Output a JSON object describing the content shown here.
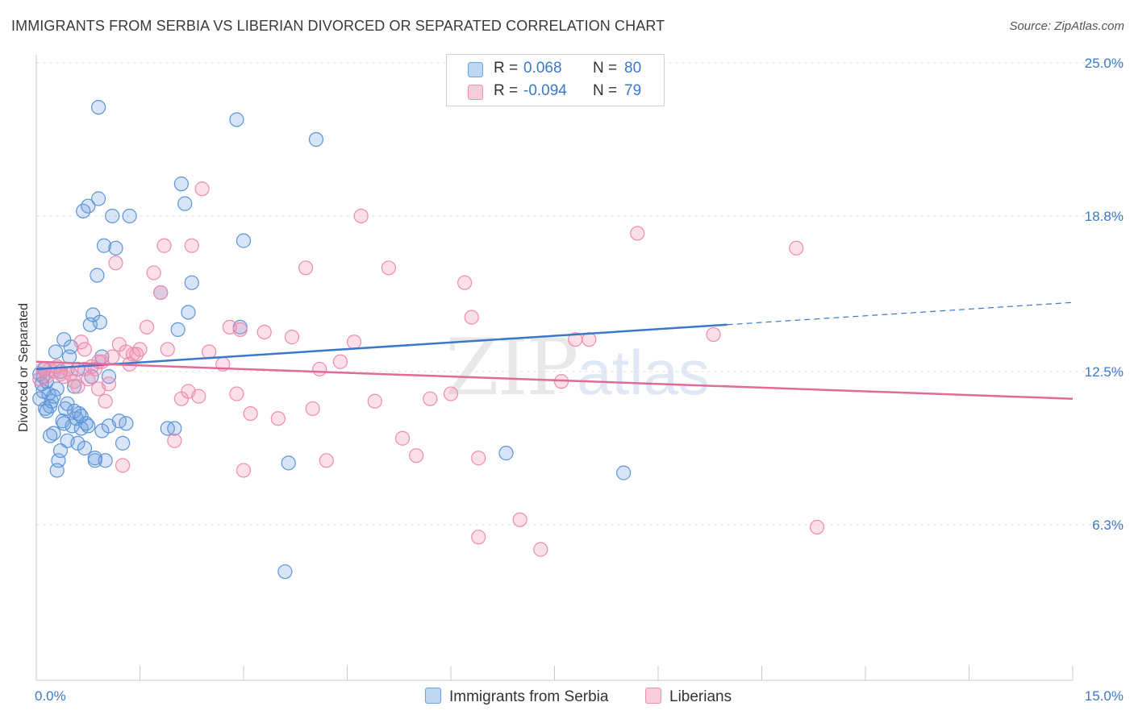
{
  "title": "IMMIGRANTS FROM SERBIA VS LIBERIAN DIVORCED OR SEPARATED CORRELATION CHART",
  "source": "Source: ZipAtlas.com",
  "watermark": {
    "zip": "ZIP",
    "atlas": "atlas"
  },
  "legend": {
    "rows": [
      {
        "r_label": "R =",
        "r_value": "0.068",
        "n_label": "N =",
        "n_value": "80",
        "color": "#6fa3e0"
      },
      {
        "r_label": "R =",
        "r_value": "-0.094",
        "n_label": "N =",
        "n_value": "79",
        "color": "#f090b0"
      }
    ]
  },
  "bottom_legend": [
    {
      "label": "Immigrants from Serbia",
      "color": "#6fa3e0"
    },
    {
      "label": "Liberians",
      "color": "#f090b0"
    }
  ],
  "chart_data": {
    "type": "scatter",
    "title": "IMMIGRANTS FROM SERBIA VS LIBERIAN DIVORCED OR SEPARATED CORRELATION CHART",
    "xlabel": "",
    "ylabel": "Divorced or Separated",
    "xlim": [
      0,
      15
    ],
    "ylim": [
      0,
      25
    ],
    "x_tick_labels": [
      "0.0%",
      "15.0%"
    ],
    "y_ticks": [
      6.3,
      12.5,
      18.8,
      25.0
    ],
    "y_tick_labels": [
      "6.3%",
      "12.5%",
      "18.8%",
      "25.0%"
    ],
    "grid": "horizontal dashed",
    "legend_position": "top-center",
    "series": [
      {
        "name": "Immigrants from Serbia",
        "color": "#6fa3e0",
        "trend": {
          "x0": 0.0,
          "y0": 12.6,
          "x1": 10.0,
          "y1": 14.4,
          "dash_to_x": 15.0,
          "dash_to_y": 15.3
        },
        "points": [
          [
            0.05,
            12.4
          ],
          [
            0.08,
            12.0
          ],
          [
            0.1,
            11.7
          ],
          [
            0.12,
            12.6
          ],
          [
            0.13,
            11.0
          ],
          [
            0.15,
            12.1
          ],
          [
            0.18,
            11.6
          ],
          [
            0.2,
            11.1
          ],
          [
            0.22,
            11.3
          ],
          [
            0.25,
            10.0
          ],
          [
            0.28,
            13.3
          ],
          [
            0.3,
            11.8
          ],
          [
            0.32,
            8.9
          ],
          [
            0.35,
            9.3
          ],
          [
            0.38,
            10.5
          ],
          [
            0.4,
            13.8
          ],
          [
            0.42,
            11.0
          ],
          [
            0.45,
            9.7
          ],
          [
            0.48,
            13.1
          ],
          [
            0.5,
            13.5
          ],
          [
            0.52,
            10.3
          ],
          [
            0.55,
            11.9
          ],
          [
            0.58,
            10.6
          ],
          [
            0.6,
            9.6
          ],
          [
            0.62,
            10.8
          ],
          [
            0.65,
            10.2
          ],
          [
            0.68,
            19.0
          ],
          [
            0.7,
            9.4
          ],
          [
            0.72,
            10.4
          ],
          [
            0.75,
            19.2
          ],
          [
            0.78,
            14.4
          ],
          [
            0.8,
            12.3
          ],
          [
            0.82,
            14.8
          ],
          [
            0.85,
            8.9
          ],
          [
            0.88,
            16.4
          ],
          [
            0.9,
            19.5
          ],
          [
            0.92,
            14.5
          ],
          [
            0.95,
            13.1
          ],
          [
            0.98,
            17.6
          ],
          [
            1.0,
            8.9
          ],
          [
            1.05,
            12.3
          ],
          [
            1.1,
            18.8
          ],
          [
            1.15,
            17.5
          ],
          [
            1.2,
            10.5
          ],
          [
            1.25,
            9.6
          ],
          [
            1.3,
            10.4
          ],
          [
            1.35,
            18.8
          ],
          [
            1.8,
            15.7
          ],
          [
            1.9,
            10.2
          ],
          [
            2.0,
            10.2
          ],
          [
            2.05,
            14.2
          ],
          [
            2.1,
            20.1
          ],
          [
            2.15,
            19.3
          ],
          [
            2.2,
            14.9
          ],
          [
            2.25,
            16.1
          ],
          [
            2.9,
            22.7
          ],
          [
            2.95,
            14.3
          ],
          [
            3.0,
            17.8
          ],
          [
            0.9,
            23.2
          ],
          [
            3.6,
            4.4
          ],
          [
            3.65,
            8.8
          ],
          [
            4.05,
            21.9
          ],
          [
            6.8,
            9.2
          ],
          [
            8.5,
            8.4
          ],
          [
            0.05,
            11.4
          ],
          [
            0.1,
            12.3
          ],
          [
            0.15,
            10.9
          ],
          [
            0.25,
            11.5
          ],
          [
            0.35,
            12.5
          ],
          [
            0.45,
            11.2
          ],
          [
            0.55,
            10.9
          ],
          [
            0.65,
            10.7
          ],
          [
            0.75,
            10.3
          ],
          [
            0.85,
            9.0
          ],
          [
            0.95,
            10.1
          ],
          [
            1.05,
            10.3
          ],
          [
            0.3,
            8.5
          ],
          [
            0.6,
            12.6
          ],
          [
            0.2,
            9.9
          ],
          [
            0.4,
            10.4
          ]
        ]
      },
      {
        "name": "Liberians",
        "color": "#f090b0",
        "trend": {
          "x0": 0.0,
          "y0": 12.9,
          "x1": 15.0,
          "y1": 11.4
        },
        "points": [
          [
            0.05,
            12.2
          ],
          [
            0.1,
            12.6
          ],
          [
            0.15,
            12.3
          ],
          [
            0.2,
            12.6
          ],
          [
            0.25,
            12.5
          ],
          [
            0.3,
            12.7
          ],
          [
            0.35,
            12.4
          ],
          [
            0.4,
            12.3
          ],
          [
            0.45,
            12.6
          ],
          [
            0.5,
            12.4
          ],
          [
            0.55,
            12.1
          ],
          [
            0.6,
            11.9
          ],
          [
            0.65,
            13.7
          ],
          [
            0.7,
            13.4
          ],
          [
            0.75,
            12.2
          ],
          [
            0.8,
            12.7
          ],
          [
            0.85,
            12.6
          ],
          [
            0.9,
            11.8
          ],
          [
            0.95,
            12.9
          ],
          [
            1.0,
            11.3
          ],
          [
            1.05,
            12.0
          ],
          [
            1.1,
            13.1
          ],
          [
            1.15,
            16.9
          ],
          [
            1.2,
            13.6
          ],
          [
            1.3,
            13.3
          ],
          [
            1.35,
            12.8
          ],
          [
            1.4,
            13.2
          ],
          [
            1.5,
            13.4
          ],
          [
            1.6,
            14.3
          ],
          [
            1.7,
            16.5
          ],
          [
            1.8,
            15.7
          ],
          [
            1.9,
            13.4
          ],
          [
            2.0,
            9.7
          ],
          [
            2.1,
            11.4
          ],
          [
            2.2,
            11.7
          ],
          [
            2.4,
            19.9
          ],
          [
            2.5,
            13.3
          ],
          [
            2.7,
            12.8
          ],
          [
            2.8,
            14.3
          ],
          [
            2.9,
            11.6
          ],
          [
            3.1,
            10.8
          ],
          [
            3.3,
            14.1
          ],
          [
            3.5,
            10.6
          ],
          [
            3.7,
            13.9
          ],
          [
            3.9,
            16.7
          ],
          [
            4.0,
            11.0
          ],
          [
            4.1,
            12.6
          ],
          [
            4.2,
            8.9
          ],
          [
            4.4,
            12.9
          ],
          [
            4.6,
            13.7
          ],
          [
            4.7,
            18.8
          ],
          [
            4.9,
            11.3
          ],
          [
            5.1,
            16.7
          ],
          [
            5.3,
            9.8
          ],
          [
            5.5,
            9.1
          ],
          [
            5.7,
            11.4
          ],
          [
            6.0,
            11.6
          ],
          [
            6.2,
            16.1
          ],
          [
            6.3,
            14.7
          ],
          [
            6.4,
            5.8
          ],
          [
            7.0,
            6.5
          ],
          [
            7.3,
            5.3
          ],
          [
            7.6,
            12.1
          ],
          [
            7.8,
            13.8
          ],
          [
            8.0,
            13.8
          ],
          [
            8.7,
            18.1
          ],
          [
            9.8,
            14.0
          ],
          [
            11.0,
            17.5
          ],
          [
            11.3,
            6.2
          ],
          [
            0.7,
            12.6
          ],
          [
            0.9,
            12.9
          ],
          [
            1.25,
            8.7
          ],
          [
            1.85,
            17.6
          ],
          [
            2.25,
            17.6
          ],
          [
            2.35,
            11.5
          ],
          [
            1.45,
            13.2
          ],
          [
            3.0,
            8.5
          ],
          [
            2.95,
            14.2
          ],
          [
            6.4,
            9.0
          ]
        ]
      }
    ]
  }
}
